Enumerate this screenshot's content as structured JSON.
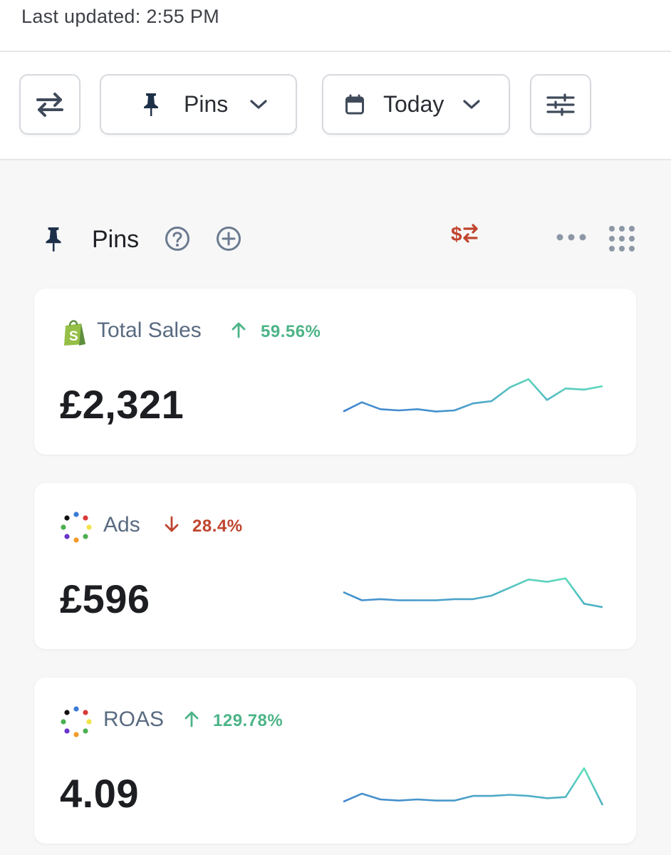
{
  "header": {
    "last_updated": "Last updated: 2:55 PM"
  },
  "toolbar": {
    "pins_label": "Pins",
    "date_label": "Today"
  },
  "section": {
    "title": "Pins"
  },
  "cards": [
    {
      "name": "Total Sales",
      "logo": "shopify-icon",
      "change_direction": "up",
      "change": "59.56%",
      "value": "£2,321",
      "sparkline": [
        12,
        20,
        14,
        13,
        14,
        12,
        13,
        19,
        21,
        33,
        40,
        22,
        32,
        31,
        34
      ]
    },
    {
      "name": "Ads",
      "logo": "multicolor-dots-icon",
      "change_direction": "down",
      "change": "28.4%",
      "value": "£596",
      "sparkline": [
        24,
        17,
        18,
        17,
        17,
        17,
        18,
        18,
        21,
        28,
        35,
        33,
        36,
        14,
        11
      ]
    },
    {
      "name": "ROAS",
      "logo": "multicolor-dots-icon",
      "change_direction": "up",
      "change": "129.78%",
      "value": "4.09",
      "sparkline": [
        11,
        18,
        13,
        12,
        13,
        12,
        12,
        16,
        16,
        17,
        16,
        14,
        15,
        40,
        8
      ]
    }
  ],
  "colors": {
    "positive": "#4cb487",
    "negative": "#c0452e",
    "spark_start": "#3f7fd1",
    "spark_end": "#5fe3b8"
  }
}
